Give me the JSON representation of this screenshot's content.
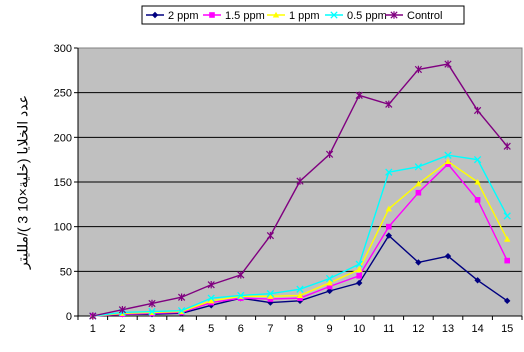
{
  "chart_data": {
    "type": "line",
    "title": "",
    "xlabel": "",
    "ylabel": "عدد الخلايا (خلية×10 3 )/ملليتر",
    "categories": [
      "1",
      "2",
      "3",
      "4",
      "5",
      "6",
      "7",
      "8",
      "9",
      "10",
      "11",
      "12",
      "13",
      "14",
      "15"
    ],
    "ylim": [
      0,
      300
    ],
    "yticks": [
      0,
      50,
      100,
      150,
      200,
      250,
      300
    ],
    "grid": "horizontal",
    "legend_position": "top",
    "plot_background": "#c0c0c0",
    "series": [
      {
        "name": "2 ppm",
        "color": "#000080",
        "marker": "diamond",
        "values": [
          0,
          2,
          2,
          3,
          12,
          20,
          15,
          17,
          28,
          37,
          90,
          60,
          67,
          40,
          17
        ]
      },
      {
        "name": "1.5 ppm",
        "color": "#ff00ff",
        "marker": "square",
        "values": [
          0,
          2,
          3,
          4,
          15,
          20,
          19,
          20,
          33,
          45,
          100,
          138,
          170,
          130,
          62
        ]
      },
      {
        "name": "1 ppm",
        "color": "#ffff00",
        "marker": "triangle",
        "values": [
          0,
          3,
          4,
          5,
          17,
          22,
          22,
          23,
          37,
          52,
          120,
          148,
          173,
          150,
          86
        ]
      },
      {
        "name": "0.5 ppm",
        "color": "#00ffff",
        "marker": "x",
        "values": [
          0,
          4,
          5,
          6,
          20,
          23,
          25,
          30,
          42,
          58,
          161,
          167,
          180,
          175,
          112
        ]
      },
      {
        "name": "Control",
        "color": "#800080",
        "marker": "star",
        "values": [
          0,
          7,
          14,
          21,
          35,
          46,
          90,
          151,
          181,
          247,
          237,
          276,
          282,
          230,
          190
        ]
      }
    ]
  }
}
